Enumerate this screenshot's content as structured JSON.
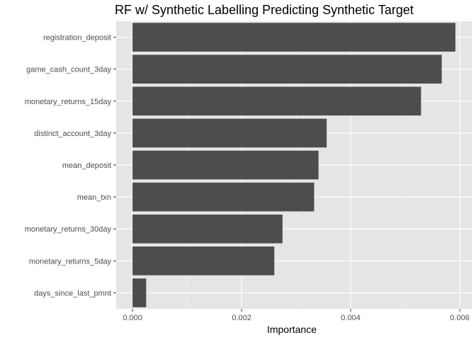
{
  "chart_data": {
    "type": "bar",
    "orientation": "horizontal",
    "title": "RF w/ Synthetic Labelling Predicting Synthetic Target",
    "xlabel": "Importance",
    "ylabel": "",
    "categories": [
      "registration_deposit",
      "game_cash_count_3day",
      "monetary_returns_15day",
      "distinct_account_3day",
      "mean_deposit",
      "mean_txn",
      "monetary_returns_30day",
      "monetary_returns_5day",
      "days_since_last_pmnt"
    ],
    "values": [
      0.00592,
      0.00567,
      0.00529,
      0.00356,
      0.00341,
      0.00333,
      0.00275,
      0.0026,
      0.00025
    ],
    "xlim": [
      -0.0003,
      0.00622
    ],
    "xticks": [
      "0.000",
      "0.002",
      "0.004",
      "0.006"
    ],
    "xtick_values": [
      0,
      0.002,
      0.004,
      0.006
    ],
    "grid": true,
    "colors": {
      "bar": "#4d4d4d",
      "panel": "#e5e5e5",
      "grid_major": "#ffffff"
    }
  }
}
